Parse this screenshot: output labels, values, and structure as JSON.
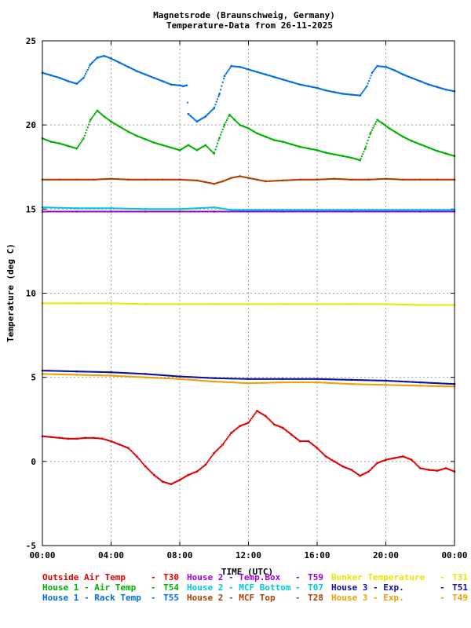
{
  "chart_data": {
    "type": "scatter",
    "title_line1": "Magnetsrode (Braunschweig, Germany)",
    "title_line2": "Temperature-Data from 26-11-2025",
    "xlabel": "TIME (UTC)",
    "ylabel": "Temperature (deg C)",
    "x_unit": "hours",
    "xlim": [
      0,
      24
    ],
    "ylim": [
      -5,
      25
    ],
    "x_ticks": [
      {
        "value": 0,
        "label": "00:00"
      },
      {
        "value": 4,
        "label": "04:00"
      },
      {
        "value": 8,
        "label": "08:00"
      },
      {
        "value": 12,
        "label": "12:00"
      },
      {
        "value": 16,
        "label": "16:00"
      },
      {
        "value": 20,
        "label": "20:00"
      },
      {
        "value": 24,
        "label": "00:00"
      }
    ],
    "y_ticks": [
      {
        "value": -5,
        "label": "-5"
      },
      {
        "value": 0,
        "label": "0"
      },
      {
        "value": 5,
        "label": "5"
      },
      {
        "value": 10,
        "label": "10"
      },
      {
        "value": 15,
        "label": "15"
      },
      {
        "value": 20,
        "label": "20"
      },
      {
        "value": 25,
        "label": "25"
      }
    ],
    "grid": true,
    "legend_position": "bottom",
    "series": [
      {
        "name": "Outside Air Temp",
        "code": "T30",
        "color": "#e00000",
        "points": [
          [
            0,
            1.5
          ],
          [
            0.5,
            1.45
          ],
          [
            1,
            1.4
          ],
          [
            1.5,
            1.35
          ],
          [
            2,
            1.35
          ],
          [
            2.5,
            1.4
          ],
          [
            3,
            1.4
          ],
          [
            3.5,
            1.35
          ],
          [
            4,
            1.2
          ],
          [
            4.5,
            1.0
          ],
          [
            5,
            0.8
          ],
          [
            5.5,
            0.3
          ],
          [
            6,
            -0.3
          ],
          [
            6.5,
            -0.8
          ],
          [
            7,
            -1.2
          ],
          [
            7.5,
            -1.35
          ],
          [
            8,
            -1.1
          ],
          [
            8.5,
            -0.8
          ],
          [
            9,
            -0.6
          ],
          [
            9.5,
            -0.2
          ],
          [
            10,
            0.5
          ],
          [
            10.5,
            1.0
          ],
          [
            11,
            1.7
          ],
          [
            11.5,
            2.1
          ],
          [
            12,
            2.3
          ],
          [
            12.5,
            3.0
          ],
          [
            13,
            2.7
          ],
          [
            13.5,
            2.2
          ],
          [
            14,
            2.0
          ],
          [
            14.5,
            1.6
          ],
          [
            15,
            1.2
          ],
          [
            15.5,
            1.2
          ],
          [
            16,
            0.8
          ],
          [
            16.5,
            0.3
          ],
          [
            17,
            0.0
          ],
          [
            17.5,
            -0.3
          ],
          [
            18,
            -0.5
          ],
          [
            18.5,
            -0.85
          ],
          [
            19,
            -0.6
          ],
          [
            19.5,
            -0.1
          ],
          [
            20,
            0.1
          ],
          [
            20.5,
            0.2
          ],
          [
            21,
            0.3
          ],
          [
            21.5,
            0.1
          ],
          [
            22,
            -0.4
          ],
          [
            22.5,
            -0.5
          ],
          [
            23,
            -0.55
          ],
          [
            23.5,
            -0.4
          ],
          [
            24,
            -0.6
          ]
        ]
      },
      {
        "name": "House 1 - Air  Temp",
        "code": "T54",
        "color": "#00b000",
        "points": [
          [
            0,
            19.2
          ],
          [
            0.5,
            19.0
          ],
          [
            1,
            18.9
          ],
          [
            1.5,
            18.75
          ],
          [
            2,
            18.6
          ],
          [
            2.4,
            19.2
          ],
          [
            2.8,
            20.3
          ],
          [
            3.2,
            20.85
          ],
          [
            3.6,
            20.5
          ],
          [
            4,
            20.2
          ],
          [
            4.5,
            19.9
          ],
          [
            5,
            19.6
          ],
          [
            5.5,
            19.35
          ],
          [
            6,
            19.15
          ],
          [
            6.5,
            18.95
          ],
          [
            7,
            18.8
          ],
          [
            7.5,
            18.65
          ],
          [
            8,
            18.5
          ],
          [
            8.5,
            18.8
          ],
          [
            9,
            18.5
          ],
          [
            9.5,
            18.8
          ],
          [
            10,
            18.3
          ],
          [
            10.3,
            19.2
          ],
          [
            10.6,
            20.0
          ],
          [
            10.9,
            20.6
          ],
          [
            11.2,
            20.3
          ],
          [
            11.5,
            20.0
          ],
          [
            12,
            19.8
          ],
          [
            12.5,
            19.5
          ],
          [
            13,
            19.3
          ],
          [
            13.5,
            19.1
          ],
          [
            14,
            19.0
          ],
          [
            14.5,
            18.85
          ],
          [
            15,
            18.7
          ],
          [
            15.5,
            18.6
          ],
          [
            16,
            18.5
          ],
          [
            16.5,
            18.35
          ],
          [
            17,
            18.25
          ],
          [
            17.5,
            18.15
          ],
          [
            18,
            18.05
          ],
          [
            18.5,
            17.9
          ],
          [
            18.8,
            18.6
          ],
          [
            19.1,
            19.5
          ],
          [
            19.5,
            20.3
          ],
          [
            19.8,
            20.1
          ],
          [
            20.2,
            19.8
          ],
          [
            20.6,
            19.55
          ],
          [
            21,
            19.3
          ],
          [
            21.5,
            19.05
          ],
          [
            22,
            18.85
          ],
          [
            22.5,
            18.65
          ],
          [
            23,
            18.45
          ],
          [
            23.5,
            18.3
          ],
          [
            24,
            18.15
          ]
        ]
      },
      {
        "name": "House 1 - Rack Temp",
        "code": "T55",
        "color": "#0070e0",
        "points": [
          [
            0,
            23.1
          ],
          [
            0.5,
            22.95
          ],
          [
            1,
            22.8
          ],
          [
            1.5,
            22.6
          ],
          [
            2,
            22.45
          ],
          [
            2.4,
            22.8
          ],
          [
            2.8,
            23.6
          ],
          [
            3.2,
            24.0
          ],
          [
            3.6,
            24.1
          ],
          [
            4,
            23.95
          ],
          [
            4.5,
            23.7
          ],
          [
            5,
            23.45
          ],
          [
            5.5,
            23.2
          ],
          [
            6,
            23.0
          ],
          [
            6.5,
            22.8
          ],
          [
            7,
            22.6
          ],
          [
            7.5,
            22.4
          ],
          [
            8,
            22.35
          ],
          [
            8.2,
            22.3
          ],
          [
            8.4,
            22.35
          ],
          [
            8.5,
            20.65
          ],
          [
            9,
            20.2
          ],
          [
            9.5,
            20.5
          ],
          [
            10,
            21.0
          ],
          [
            10.3,
            21.8
          ],
          [
            10.6,
            22.9
          ],
          [
            11,
            23.5
          ],
          [
            11.5,
            23.45
          ],
          [
            12,
            23.3
          ],
          [
            12.5,
            23.15
          ],
          [
            13,
            23.0
          ],
          [
            13.5,
            22.85
          ],
          [
            14,
            22.7
          ],
          [
            14.5,
            22.55
          ],
          [
            15,
            22.4
          ],
          [
            15.5,
            22.3
          ],
          [
            16,
            22.2
          ],
          [
            16.5,
            22.05
          ],
          [
            17,
            21.95
          ],
          [
            17.5,
            21.85
          ],
          [
            18,
            21.8
          ],
          [
            18.5,
            21.75
          ],
          [
            18.9,
            22.3
          ],
          [
            19.2,
            23.1
          ],
          [
            19.5,
            23.5
          ],
          [
            20,
            23.45
          ],
          [
            20.5,
            23.25
          ],
          [
            21,
            23.0
          ],
          [
            21.5,
            22.8
          ],
          [
            22,
            22.6
          ],
          [
            22.5,
            22.4
          ],
          [
            23,
            22.25
          ],
          [
            23.5,
            22.1
          ],
          [
            24,
            22.0
          ]
        ]
      },
      {
        "name": "House 2 - Temp.Box",
        "code": "T59",
        "color": "#a000e0",
        "points": [
          [
            0,
            14.85
          ],
          [
            2,
            14.85
          ],
          [
            4,
            14.85
          ],
          [
            6,
            14.85
          ],
          [
            8,
            14.85
          ],
          [
            10,
            14.85
          ],
          [
            12,
            14.85
          ],
          [
            14,
            14.85
          ],
          [
            16,
            14.85
          ],
          [
            18,
            14.85
          ],
          [
            20,
            14.85
          ],
          [
            22,
            14.85
          ],
          [
            24,
            14.85
          ]
        ]
      },
      {
        "name": "House 2 - MCF Bottom",
        "code": "T07",
        "color": "#00c8d8",
        "points": [
          [
            0,
            15.1
          ],
          [
            2,
            15.05
          ],
          [
            4,
            15.05
          ],
          [
            6,
            15.0
          ],
          [
            8,
            15.0
          ],
          [
            10,
            15.1
          ],
          [
            11,
            14.95
          ],
          [
            12,
            14.95
          ],
          [
            14,
            14.95
          ],
          [
            16,
            14.95
          ],
          [
            18,
            14.95
          ],
          [
            20,
            14.95
          ],
          [
            22,
            14.95
          ],
          [
            24,
            14.95
          ]
        ]
      },
      {
        "name": "House 2 - MCF Top",
        "code": "T28",
        "color": "#b04000",
        "points": [
          [
            0,
            16.75
          ],
          [
            1,
            16.75
          ],
          [
            2,
            16.75
          ],
          [
            3,
            16.75
          ],
          [
            4,
            16.8
          ],
          [
            5,
            16.75
          ],
          [
            6,
            16.75
          ],
          [
            7,
            16.75
          ],
          [
            8,
            16.75
          ],
          [
            9,
            16.7
          ],
          [
            9.5,
            16.6
          ],
          [
            10,
            16.5
          ],
          [
            10.5,
            16.65
          ],
          [
            11,
            16.85
          ],
          [
            11.5,
            16.95
          ],
          [
            12,
            16.85
          ],
          [
            12.5,
            16.75
          ],
          [
            13,
            16.65
          ],
          [
            14,
            16.7
          ],
          [
            15,
            16.75
          ],
          [
            16,
            16.75
          ],
          [
            17,
            16.8
          ],
          [
            18,
            16.75
          ],
          [
            19,
            16.75
          ],
          [
            20,
            16.8
          ],
          [
            21,
            16.75
          ],
          [
            22,
            16.75
          ],
          [
            23,
            16.75
          ],
          [
            24,
            16.75
          ]
        ]
      },
      {
        "name": "Bunker Temperature",
        "code": "T31",
        "color": "#e8e800",
        "points": [
          [
            0,
            9.4
          ],
          [
            2,
            9.4
          ],
          [
            4,
            9.4
          ],
          [
            6,
            9.35
          ],
          [
            8,
            9.35
          ],
          [
            10,
            9.35
          ],
          [
            12,
            9.35
          ],
          [
            14,
            9.35
          ],
          [
            16,
            9.35
          ],
          [
            18,
            9.35
          ],
          [
            20,
            9.35
          ],
          [
            22,
            9.3
          ],
          [
            24,
            9.3
          ]
        ]
      },
      {
        "name": "House 3 - Exp.",
        "code": "T51",
        "color": "#1010a0",
        "points": [
          [
            0,
            5.4
          ],
          [
            2,
            5.35
          ],
          [
            4,
            5.3
          ],
          [
            6,
            5.2
          ],
          [
            8,
            5.05
          ],
          [
            10,
            4.95
          ],
          [
            12,
            4.9
          ],
          [
            14,
            4.9
          ],
          [
            16,
            4.9
          ],
          [
            18,
            4.85
          ],
          [
            20,
            4.8
          ],
          [
            22,
            4.7
          ],
          [
            24,
            4.6
          ]
        ]
      },
      {
        "name": "House 3 - Exp.",
        "code": "T49",
        "color": "#f0a000",
        "points": [
          [
            0,
            5.2
          ],
          [
            2,
            5.15
          ],
          [
            4,
            5.1
          ],
          [
            6,
            5.0
          ],
          [
            8,
            4.9
          ],
          [
            10,
            4.75
          ],
          [
            12,
            4.65
          ],
          [
            14,
            4.7
          ],
          [
            16,
            4.7
          ],
          [
            18,
            4.6
          ],
          [
            20,
            4.55
          ],
          [
            22,
            4.5
          ],
          [
            24,
            4.45
          ]
        ]
      }
    ],
    "legend": [
      {
        "label": "Outside Air Temp",
        "code": "T30",
        "color": "#e00000"
      },
      {
        "label": "House 2 - Temp.Box",
        "code": "T59",
        "color": "#a000e0"
      },
      {
        "label": "Bunker Temperature",
        "code": "T31",
        "color": "#e8e800"
      },
      {
        "label": "House 1 - Air  Temp",
        "code": "T54",
        "color": "#00b000"
      },
      {
        "label": "House 2 - MCF Bottom",
        "code": "T07",
        "color": "#00c8d8"
      },
      {
        "label": "House 3 - Exp.",
        "code": "T51",
        "color": "#1010a0"
      },
      {
        "label": "House 1 - Rack Temp",
        "code": "T55",
        "color": "#0070e0"
      },
      {
        "label": "House 2 - MCF Top",
        "code": "T28",
        "color": "#b04000"
      },
      {
        "label": "House 3 - Exp.",
        "code": "T49",
        "color": "#f0a000"
      }
    ]
  }
}
